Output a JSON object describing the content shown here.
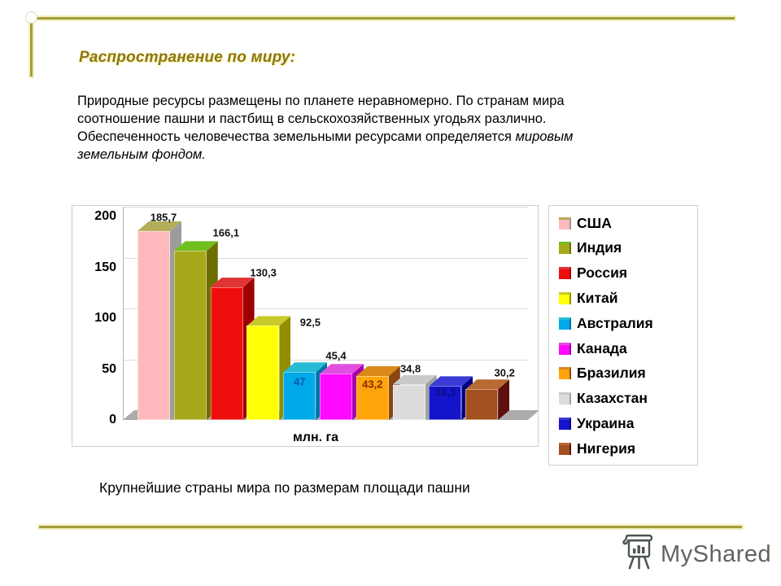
{
  "header": {
    "title": "Распространение по миру:"
  },
  "body": {
    "paragraph1": "Природные ресурсы размещены по планете неравномерно. По странам мира соотношение пашни и пастбищ в сельскохозяйственных угодьях различно.",
    "paragraph2": "Обеспеченность человечества земельными ресурсами определяется ",
    "paragraph2_em": "мировым земельным фондом."
  },
  "chart_data": {
    "type": "bar",
    "title": "",
    "xlabel": "млн. га",
    "ylabel": "",
    "ylim": [
      0,
      200
    ],
    "yticks": [
      "0",
      "50",
      "100",
      "150",
      "200"
    ],
    "grid": true,
    "legend_position": "right",
    "categories": [
      "США",
      "Индия",
      "Россия",
      "Китай",
      "Австралия",
      "Канада",
      "Бразилия",
      "Казахстан",
      "Украина",
      "Нигерия"
    ],
    "values": [
      185.7,
      166.1,
      130.3,
      92.5,
      47,
      45.4,
      43.2,
      34.8,
      33.3,
      30.2
    ],
    "value_labels": [
      "185,7",
      "166,1",
      "130,3",
      "92,5",
      "47",
      "45,4",
      "43,2",
      "34,8",
      "33,3",
      "30,2"
    ],
    "label_inside": [
      false,
      false,
      false,
      false,
      true,
      false,
      true,
      false,
      true,
      false
    ],
    "inside_label_colors": {
      "4": "#0A58A8",
      "6": "#8A2B00",
      "8": "#0D0D80"
    },
    "label_dx": [
      12,
      44,
      45,
      58,
      0,
      0,
      0,
      2,
      0,
      28
    ],
    "label_dy": [
      -17,
      -22,
      -18,
      -4,
      12,
      -22,
      10,
      -20,
      8,
      -20
    ],
    "bar_styles": [
      {
        "front": "#FFB9BD",
        "top": "#B3AE57",
        "side": "#9C9C9C"
      },
      {
        "front": "#A8A81C",
        "top": "#6FBF1E",
        "side": "#6E6E00"
      },
      {
        "front": "#EE0E0E",
        "top": "#E03535",
        "side": "#9E0000"
      },
      {
        "front": "#FFFF05",
        "top": "#C9C92A",
        "side": "#8F8F00"
      },
      {
        "front": "#00A9E8",
        "top": "#27BBD4",
        "side": "#0071A8"
      },
      {
        "front": "#FF0AFF",
        "top": "#E14FE1",
        "side": "#A800A8"
      },
      {
        "front": "#FFA50A",
        "top": "#D98A1A",
        "side": "#8B4513"
      },
      {
        "front": "#DCDCDC",
        "top": "#C9C9C9",
        "side": "#A0A0A0"
      },
      {
        "front": "#1414CC",
        "top": "#3A3AD4",
        "side": "#000080"
      },
      {
        "front": "#A3511F",
        "top": "#B86A33",
        "side": "#5E0F0F"
      }
    ]
  },
  "caption": {
    "text": "Крупнейшие страны мира по размерам площади пашни"
  },
  "watermark": {
    "label": "MyShared"
  },
  "theme": {
    "accent": "#8A7619",
    "rule": "#A09E3C",
    "rule_glow": "#F4F0BE"
  }
}
